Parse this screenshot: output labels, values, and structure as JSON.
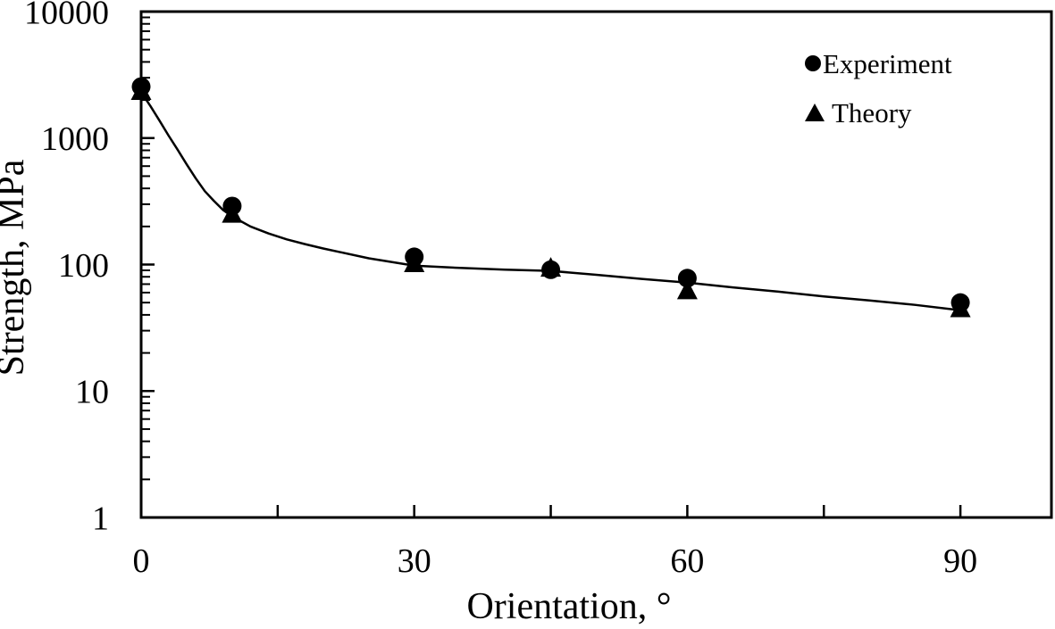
{
  "chart_data": {
    "type": "scatter",
    "title": "",
    "xlabel": "Orientation, °",
    "ylabel": "Strength, MPa",
    "x_axis": {
      "min": 0,
      "max": 100,
      "ticks": [
        0,
        15,
        30,
        45,
        60,
        75,
        90
      ],
      "labeled_ticks": [
        0,
        30,
        60,
        90
      ]
    },
    "y_axis": {
      "scale": "log",
      "min": 1,
      "max": 10000,
      "major_ticks": [
        1,
        10,
        100,
        1000,
        10000
      ],
      "labels": [
        "1",
        "10",
        "100",
        "1000",
        "10000"
      ],
      "grid": false
    },
    "series": [
      {
        "name": "Experiment",
        "marker": "circle",
        "x": [
          0,
          10,
          30,
          45,
          60,
          90
        ],
        "y": [
          2550,
          290,
          115,
          91,
          78,
          50
        ]
      },
      {
        "name": "Theory",
        "marker": "triangle",
        "x": [
          0,
          10,
          30,
          45,
          60,
          90
        ],
        "y": [
          2300,
          246,
          100,
          92,
          61,
          44
        ]
      }
    ],
    "theory_curve": {
      "x": [
        0,
        1,
        2,
        3,
        4,
        5,
        6,
        7,
        8,
        9,
        10,
        12,
        14,
        16,
        18,
        20,
        25,
        30,
        35,
        40,
        45,
        50,
        55,
        60,
        65,
        70,
        75,
        80,
        85,
        90
      ],
      "y": [
        2300,
        1800,
        1380,
        1050,
        810,
        620,
        480,
        380,
        318,
        270,
        240,
        200,
        176,
        158,
        145,
        134,
        112,
        98,
        94,
        91,
        89,
        83,
        77,
        72,
        66,
        61,
        56,
        52,
        48,
        43.5
      ]
    },
    "legend_position": "top-right",
    "colors": {
      "foreground": "#000000",
      "background": "#ffffff"
    }
  }
}
